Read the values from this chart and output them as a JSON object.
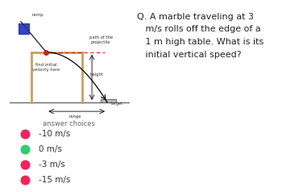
{
  "bg_color": "#ffffff",
  "diagram_bg": "#e8e8e8",
  "question_text": "Q. A marble traveling at 3\n   m/s rolls off the edge of a\n   1 m high table. What is its\n   initial vertical speed?",
  "answer_label": "answer choices",
  "choices": [
    "-10 m/s",
    "0 m/s",
    "-3 m/s",
    "-15 m/s"
  ],
  "choice_colors": [
    "#f0245a",
    "#2ecc71",
    "#f0245a",
    "#f0245a"
  ],
  "diagram_labels": {
    "ramp": "ramp",
    "path": "path of the\nprojectile",
    "find": "find initial\nvelocity here",
    "height": "height",
    "range": "range",
    "target": "target"
  },
  "table_color": "#c8a060",
  "ground_color": "#888888",
  "ramp_color": "#888888"
}
